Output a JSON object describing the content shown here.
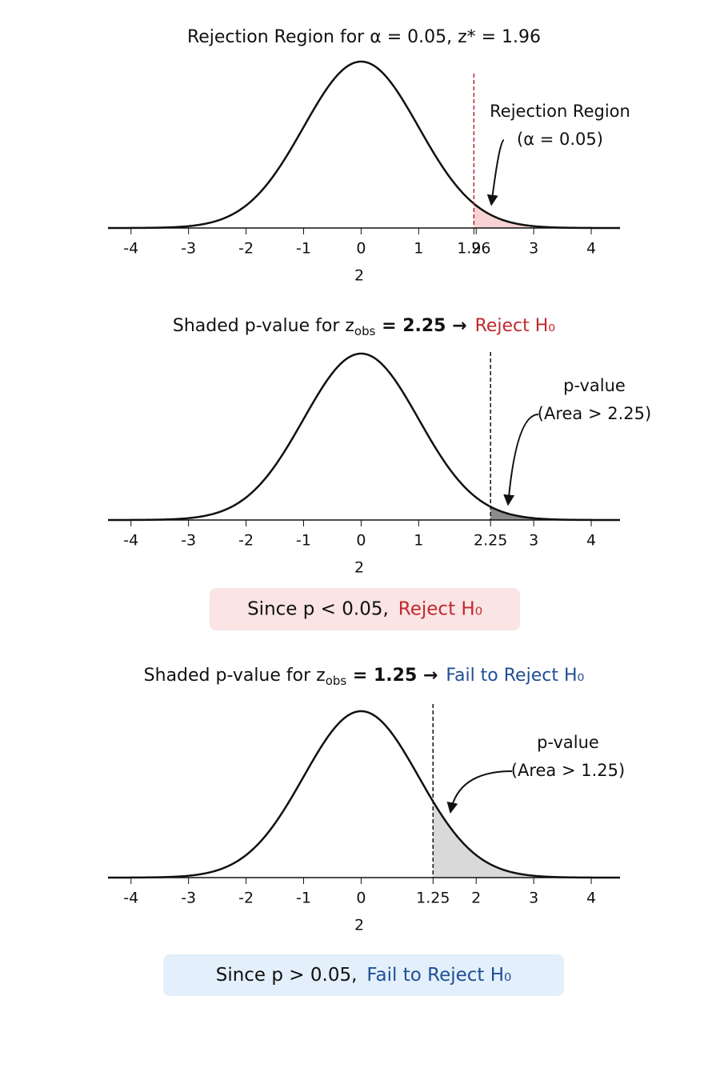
{
  "chart_data": [
    {
      "type": "normal-curve",
      "title": "Rejection Region for α = 0.05,  z* = 1.96",
      "xlabel": "2",
      "xlim": [
        -4.4,
        4.5
      ],
      "xticks": [
        -4,
        -3,
        -2,
        -1,
        0,
        1,
        1.96,
        2,
        3,
        4
      ],
      "tick_colors": [
        "#333",
        "#333",
        "#333",
        "#333",
        "#333",
        "#c0282d",
        "#c0282d",
        "#c0282d",
        "#333",
        "#333"
      ],
      "cutoff": 1.96,
      "cutoff_line_color": "#b22a2e",
      "shade_color": "#f7d3d6",
      "annotation": [
        "Rejection Region",
        "(α = 0.05)"
      ],
      "annotation_color": "#c0282d"
    },
    {
      "type": "normal-curve",
      "title": "Shaded p-value for z",
      "title_sub": "obs",
      "title_rest": " = 2.25 →",
      "verdict": "Reject H₀",
      "verdict_color": "#c0282d",
      "xlabel": "2",
      "xlim": [
        -4.4,
        4.5
      ],
      "xticks": [
        -4,
        -3,
        -2,
        -1,
        0,
        1,
        2.25,
        3,
        4
      ],
      "tick_colors": [
        "#333",
        "#333",
        "#333",
        "#333",
        "#333",
        "#333",
        "#1f4e96",
        "#333",
        "#333"
      ],
      "cutoff": 2.25,
      "cutoff_line_color": "#111",
      "shade_color": "#8c8c8c",
      "annotation": [
        "p-value",
        "(Area > 2.25)"
      ],
      "annotation_color": "#222",
      "conclusion": "Since p < 0.05,",
      "conclusion_verdict": "Reject H₀",
      "conclusion_bg": "#fbe4e4"
    },
    {
      "type": "normal-curve",
      "title": "Shaded p-value for z",
      "title_sub": "obs",
      "title_rest": " = 1.25 →",
      "verdict": "Fail to Reject H₀",
      "verdict_color": "#1f4e96",
      "xlabel": "2",
      "xlim": [
        -4.4,
        4.5
      ],
      "xticks": [
        -4,
        -3,
        -2,
        -1,
        0,
        1.25,
        2,
        3,
        4
      ],
      "tick_colors": [
        "#333",
        "#333",
        "#333",
        "#333",
        "#333",
        "#1f4e96",
        "#333",
        "#333",
        "#333"
      ],
      "cutoff": 1.25,
      "cutoff_line_color": "#111",
      "shade_color": "#d9d9d9",
      "annotation": [
        "p-value",
        "(Area > 1.25)"
      ],
      "annotation_color": "#222",
      "conclusion": "Since p > 0.05,",
      "conclusion_verdict": "Fail to Reject H₀",
      "conclusion_bg": "#e3f0fb"
    }
  ]
}
